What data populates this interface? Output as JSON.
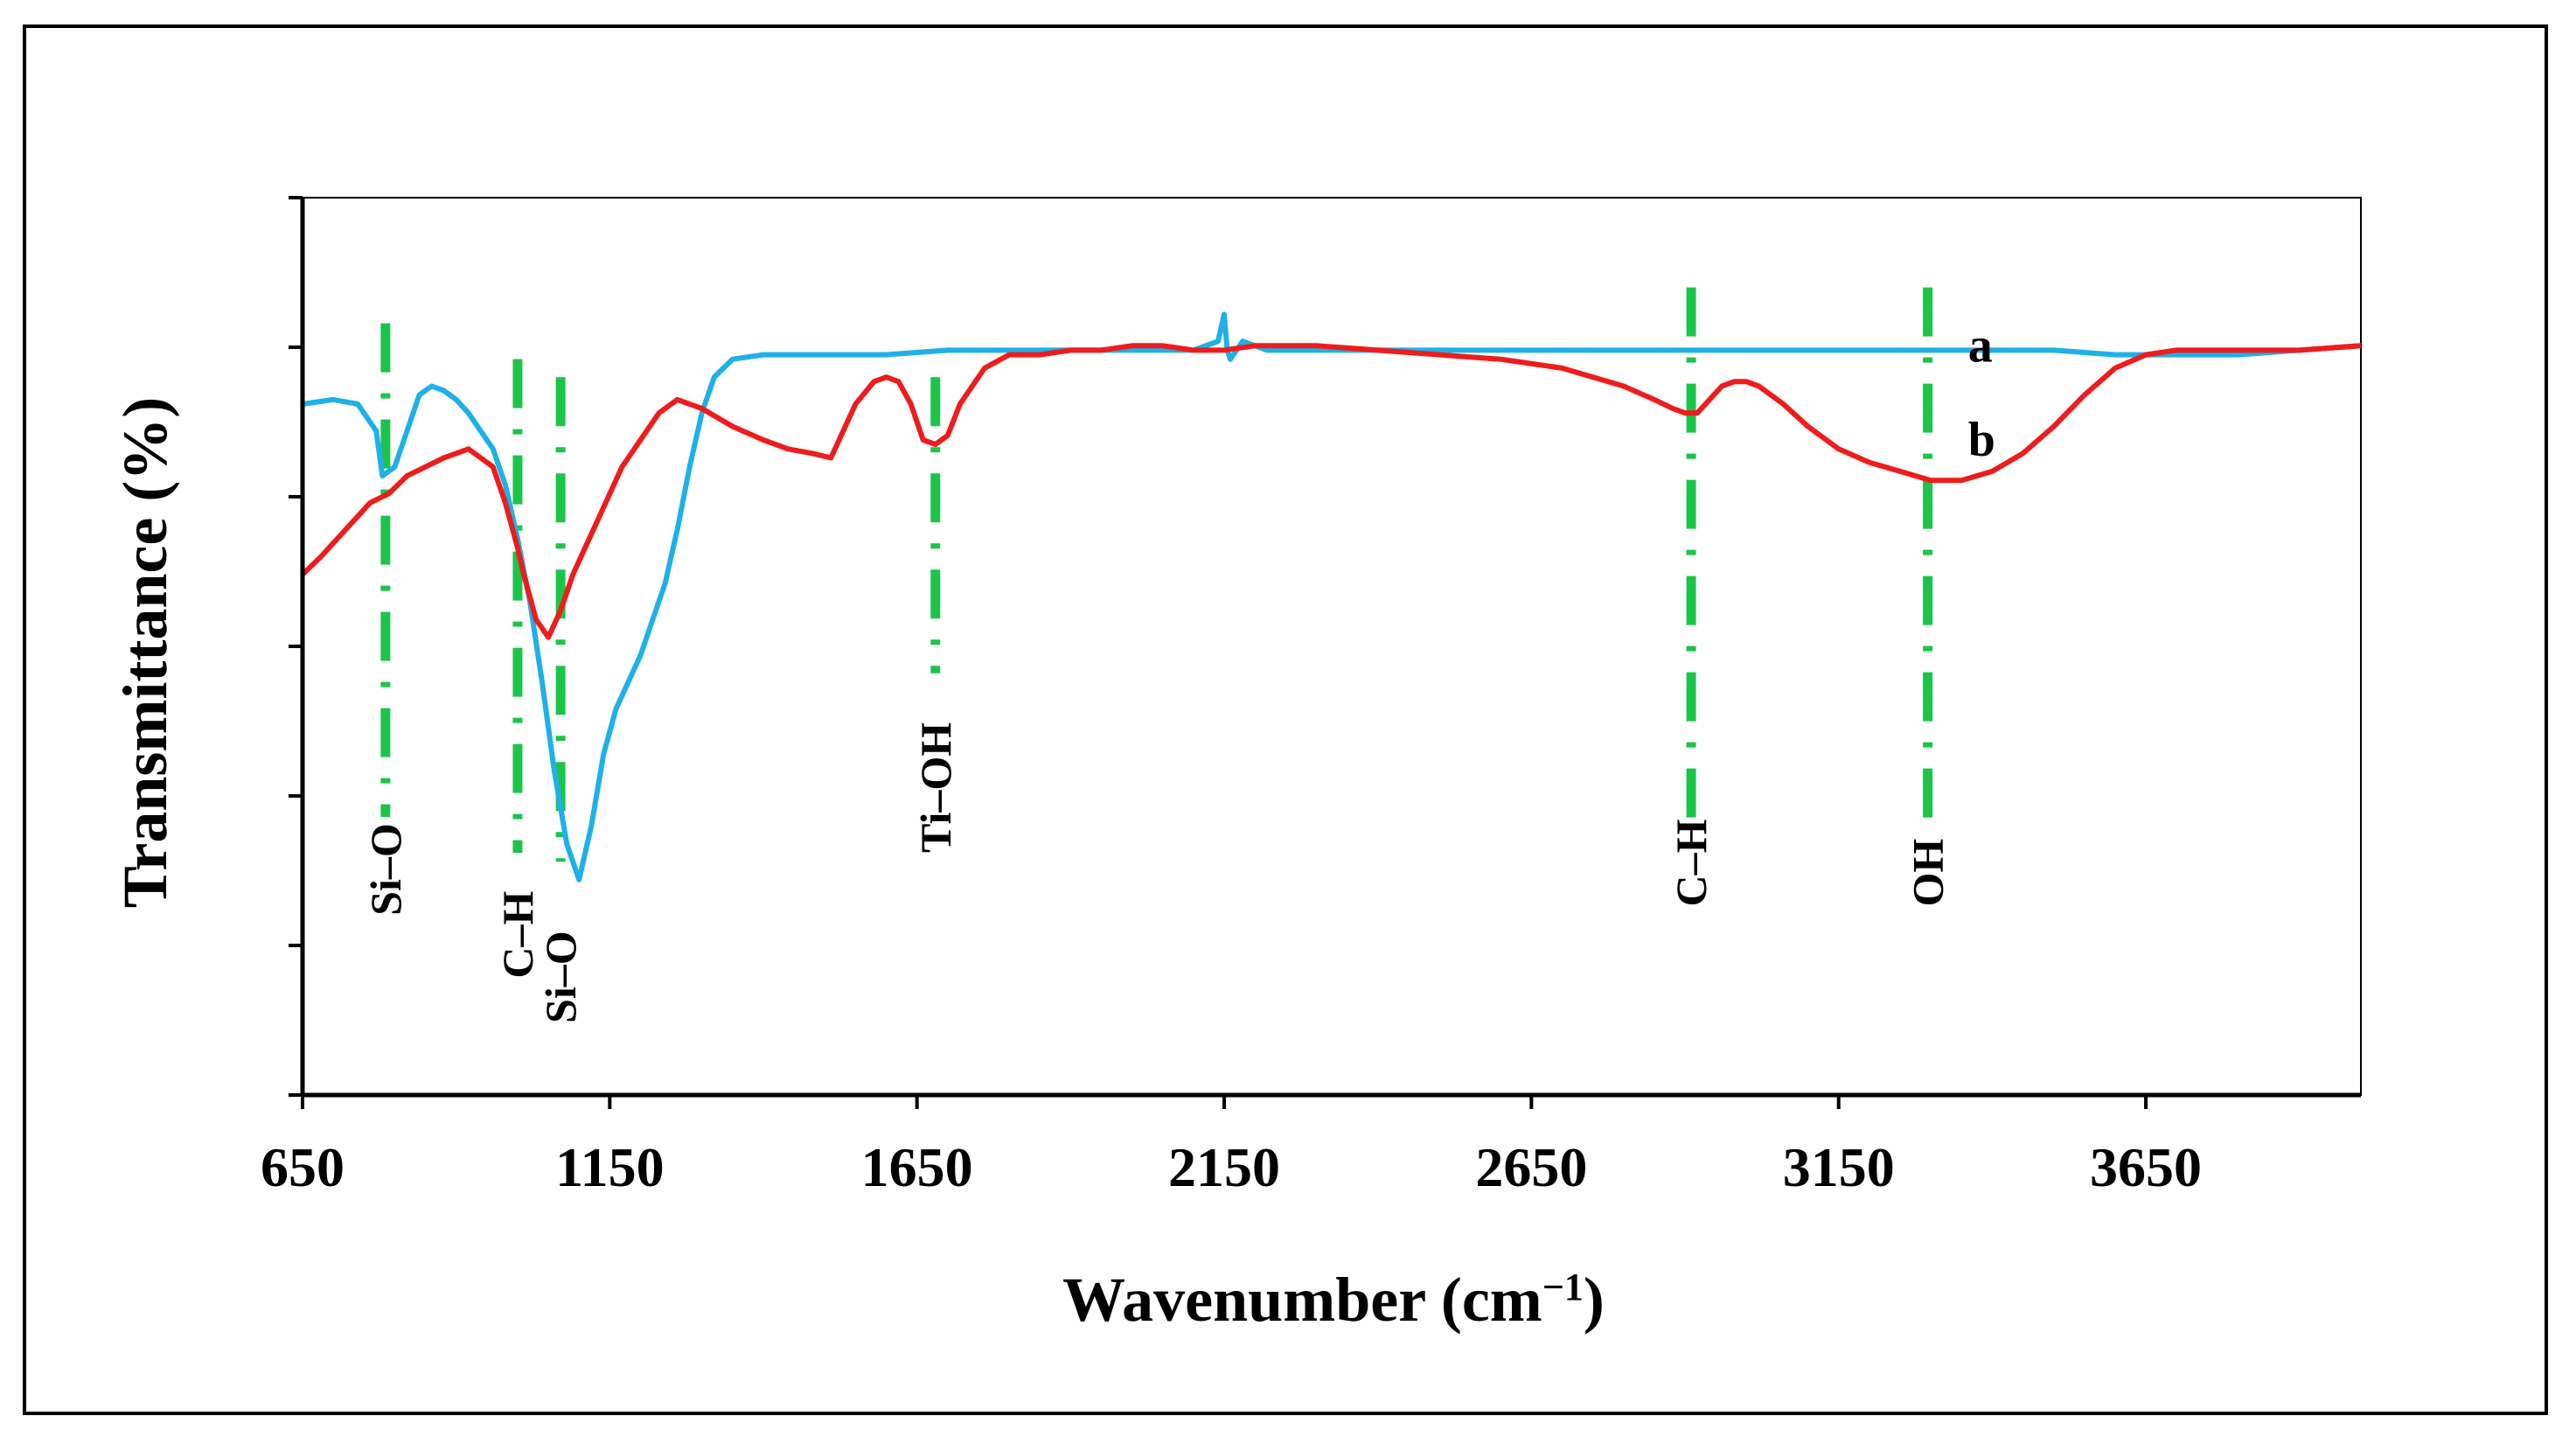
{
  "chart_data": {
    "type": "line",
    "title": "",
    "xlabel": "Wavenumber (cm",
    "xlabel_sup": "−1",
    "xlabel_close": ")",
    "ylabel": "Transmittance (%)",
    "xlim": [
      650,
      4000
    ],
    "ylim": [
      0,
      100
    ],
    "x_ticks": [
      650,
      1150,
      1650,
      2150,
      2650,
      3150,
      3650
    ],
    "x_tick_labels": [
      "650",
      "1150",
      "1650",
      "2150",
      "2650",
      "3150",
      "3650"
    ],
    "y_ticks": [
      0,
      16.67,
      33.33,
      50,
      66.67,
      83.33,
      100
    ],
    "y_tick_labels_visible": false,
    "grid": false,
    "series": [
      {
        "name": "a",
        "color": "#1fb0e8",
        "x": [
          650,
          700,
          740,
          770,
          780,
          800,
          820,
          840,
          860,
          880,
          900,
          920,
          940,
          960,
          980,
          1000,
          1020,
          1040,
          1060,
          1080,
          1100,
          1120,
          1140,
          1160,
          1180,
          1200,
          1220,
          1240,
          1260,
          1280,
          1300,
          1320,
          1350,
          1400,
          1500,
          1600,
          1700,
          1800,
          2000,
          2100,
          2140,
          2150,
          2155,
          2160,
          2170,
          2180,
          2200,
          2220,
          2250,
          2300,
          2400,
          2600,
          2800,
          3000,
          3200,
          3300,
          3400,
          3500,
          3600,
          3700,
          3800,
          3900,
          4000
        ],
        "y": [
          77,
          77.5,
          77,
          74,
          69,
          70,
          74,
          78,
          79,
          78.5,
          77.5,
          76,
          74,
          72,
          68,
          62,
          55,
          46,
          36,
          28,
          24,
          30,
          38,
          43,
          46,
          49,
          53,
          57,
          63,
          70,
          76,
          80,
          82,
          82.5,
          82.5,
          82.5,
          83,
          83,
          83,
          83,
          84,
          87,
          83,
          82,
          83,
          84,
          83.5,
          83,
          83,
          83,
          83,
          83,
          83,
          83,
          83,
          83,
          83,
          83,
          82.5,
          82.5,
          82.5,
          83,
          83.5
        ]
      },
      {
        "name": "b",
        "color": "#ee1c1c",
        "x": [
          650,
          680,
          720,
          760,
          790,
          820,
          850,
          880,
          900,
          920,
          940,
          960,
          980,
          1000,
          1010,
          1030,
          1050,
          1070,
          1090,
          1110,
          1130,
          1150,
          1170,
          1200,
          1230,
          1260,
          1300,
          1350,
          1400,
          1440,
          1480,
          1510,
          1550,
          1580,
          1600,
          1620,
          1640,
          1650,
          1660,
          1680,
          1700,
          1720,
          1760,
          1800,
          1850,
          1900,
          1950,
          2000,
          2050,
          2100,
          2150,
          2200,
          2250,
          2300,
          2400,
          2500,
          2600,
          2700,
          2800,
          2850,
          2880,
          2900,
          2920,
          2940,
          2960,
          2980,
          3000,
          3020,
          3040,
          3060,
          3100,
          3150,
          3200,
          3250,
          3300,
          3330,
          3350,
          3400,
          3450,
          3500,
          3550,
          3600,
          3650,
          3700,
          3800,
          3900,
          4000
        ],
        "y": [
          58,
          60,
          63,
          66,
          67,
          69,
          70,
          71,
          71.5,
          72,
          71,
          70,
          66,
          61,
          58,
          53,
          51,
          54,
          58,
          61,
          64,
          67,
          70,
          73,
          76,
          77.5,
          76.5,
          74.5,
          73,
          72,
          71.5,
          71,
          77,
          79.5,
          80,
          79.5,
          77,
          75,
          73,
          72.5,
          73.5,
          77,
          81,
          82.5,
          82.5,
          83,
          83,
          83.5,
          83.5,
          83,
          83,
          83.5,
          83.5,
          83.5,
          83,
          82.5,
          82,
          81,
          79,
          77.5,
          76.5,
          76,
          76,
          77.5,
          79,
          79.5,
          79.5,
          79,
          78,
          77,
          74.5,
          72,
          70.5,
          69.5,
          68.5,
          68.5,
          68.5,
          69.5,
          71.5,
          74.5,
          78,
          81,
          82.5,
          83,
          83,
          83,
          83.5
        ]
      }
    ],
    "series_labels": [
      {
        "text": "a",
        "x": 3335,
        "y": 83.5
      },
      {
        "text": "b",
        "x": 3335,
        "y": 73
      }
    ],
    "annotations": [
      {
        "text": "Si–O",
        "x": 785,
        "y_top": 86,
        "y_bottom": 31,
        "label_y": 20
      },
      {
        "text": "C–H",
        "x": 1000,
        "y_top": 82,
        "y_bottom": 27,
        "label_y": 13
      },
      {
        "text": "Si–O",
        "x": 1070,
        "y_top": 80,
        "y_bottom": 26,
        "label_y": 8
      },
      {
        "text": "Ti–OH",
        "x": 1680,
        "y_top": 80,
        "y_bottom": 47,
        "label_y": 27
      },
      {
        "text": "C–H",
        "x": 2910,
        "y_top": 90,
        "y_bottom": 29,
        "label_y": 21
      },
      {
        "text": "OH",
        "x": 3295,
        "y_top": 90,
        "y_bottom": 30,
        "label_y": 21
      }
    ],
    "annotation_color": "#1bc54a"
  }
}
